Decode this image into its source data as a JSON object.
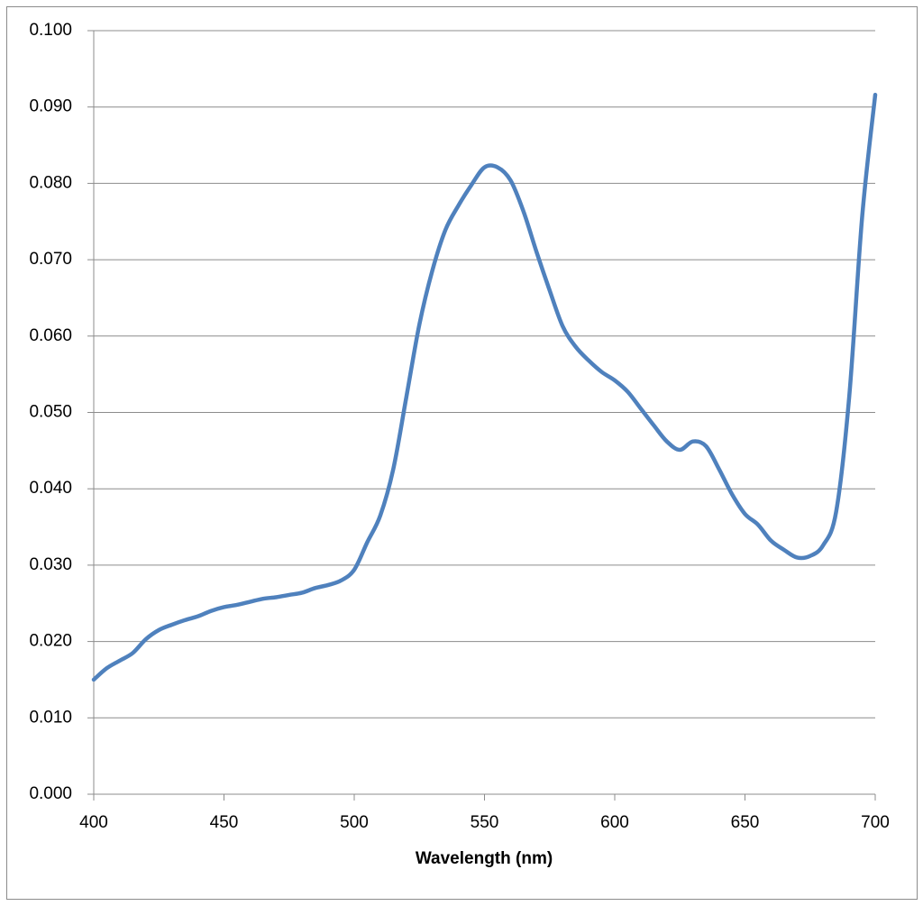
{
  "chart_data": {
    "type": "line",
    "x_label": "Wavelength (nm)",
    "x": [
      400,
      405,
      410,
      415,
      420,
      425,
      430,
      435,
      440,
      445,
      450,
      455,
      460,
      465,
      470,
      475,
      480,
      485,
      490,
      495,
      500,
      505,
      510,
      515,
      520,
      525,
      530,
      535,
      540,
      545,
      550,
      555,
      560,
      565,
      570,
      575,
      580,
      585,
      590,
      595,
      600,
      605,
      610,
      615,
      620,
      625,
      630,
      635,
      640,
      645,
      650,
      655,
      660,
      665,
      670,
      675,
      680,
      685,
      690,
      695,
      700
    ],
    "series": [
      {
        "color": "#4f81bd",
        "values": [
          0.015,
          0.0165,
          0.0175,
          0.0185,
          0.0203,
          0.0215,
          0.0222,
          0.0228,
          0.0233,
          0.024,
          0.0245,
          0.0248,
          0.0252,
          0.0256,
          0.0258,
          0.0261,
          0.0264,
          0.027,
          0.0274,
          0.028,
          0.0294,
          0.033,
          0.0365,
          0.0426,
          0.052,
          0.0615,
          0.0686,
          0.0739,
          0.0771,
          0.0798,
          0.0821,
          0.0821,
          0.0804,
          0.0763,
          0.071,
          0.066,
          0.0613,
          0.0586,
          0.0568,
          0.0553,
          0.0542,
          0.0527,
          0.0505,
          0.0483,
          0.0462,
          0.0451,
          0.0462,
          0.0456,
          0.0426,
          0.0393,
          0.0367,
          0.0353,
          0.0332,
          0.032,
          0.031,
          0.0312,
          0.0326,
          0.037,
          0.052,
          0.0757,
          0.0916
        ]
      }
    ],
    "xlim": [
      400,
      700
    ],
    "xticks": [
      400,
      450,
      500,
      550,
      600,
      650,
      700
    ],
    "ylim": [
      0,
      0.1
    ],
    "yticks": [
      {
        "value": 0,
        "label": "0.000"
      },
      {
        "value": 0.01,
        "label": "0.010"
      },
      {
        "value": 0.02,
        "label": "0.020"
      },
      {
        "value": 0.03,
        "label": "0.030"
      },
      {
        "value": 0.04,
        "label": "0.040"
      },
      {
        "value": 0.05,
        "label": "0.050"
      },
      {
        "value": 0.06,
        "label": "0.060"
      },
      {
        "value": 0.07,
        "label": "0.070"
      },
      {
        "value": 0.08,
        "label": "0.080"
      },
      {
        "value": 0.09,
        "label": "0.090"
      },
      {
        "value": 0.1,
        "label": "0.100"
      }
    ],
    "grid": true
  }
}
